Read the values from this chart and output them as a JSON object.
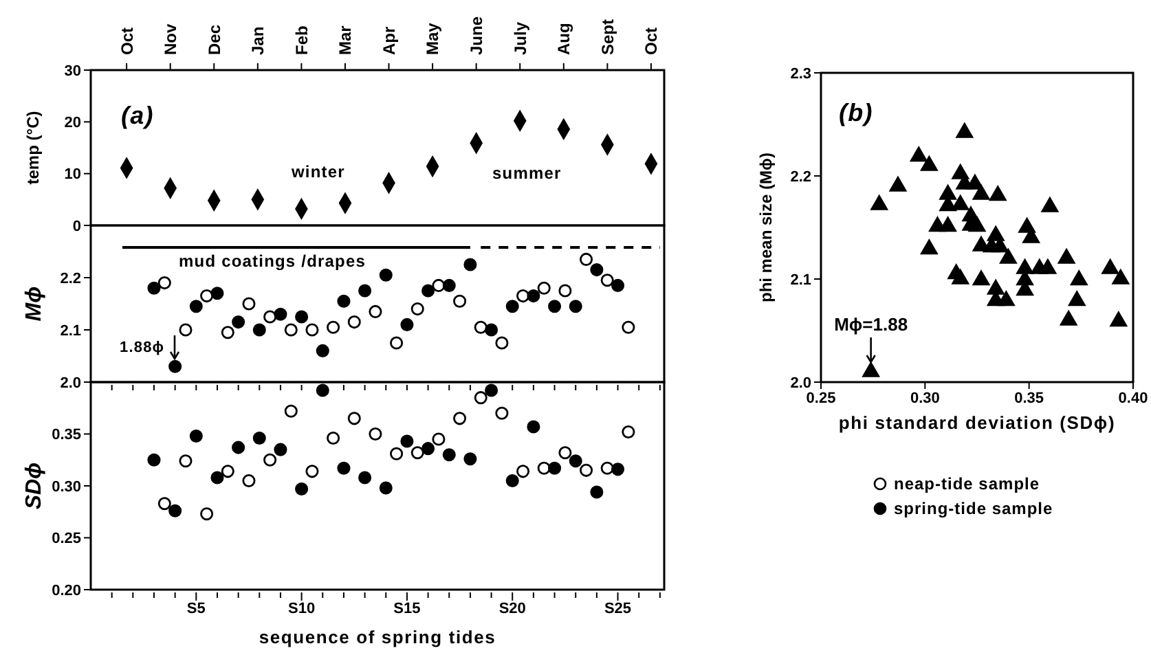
{
  "chart_data": [
    {
      "type": "scatter",
      "ylabel": "temp (°C)",
      "marker": "diamond",
      "annotations": [
        "(a)",
        "winter",
        "summer"
      ],
      "categories": [
        "Oct",
        "Nov",
        "Dec",
        "Jan",
        "Feb",
        "Mar",
        "Apr",
        "May",
        "June",
        "July",
        "Aug",
        "Sept",
        "Oct"
      ],
      "ylim": [
        0,
        30
      ],
      "yticks": [
        0,
        10,
        20,
        30
      ],
      "series": [
        {
          "color": "#000000",
          "values": [
            11.1,
            7.2,
            4.8,
            5.0,
            3.2,
            4.3,
            8.2,
            11.4,
            15.9,
            20.2,
            18.6,
            15.6,
            11.9
          ]
        }
      ]
    },
    {
      "type": "scatter",
      "ylabel": "Mϕ",
      "marker": "circle",
      "tick_labels": "y",
      "annotations": [
        "mud coatings /drapes",
        "1.88ϕ"
      ],
      "categories": [
        null,
        null,
        null,
        null,
        null,
        null,
        null,
        null,
        null,
        null,
        null,
        null,
        null,
        null,
        null,
        null,
        null,
        null,
        null,
        null,
        null,
        null,
        null,
        null,
        null,
        null,
        null,
        null,
        null,
        null,
        null,
        null,
        null,
        null,
        null,
        null,
        null,
        null,
        null,
        null,
        null,
        null,
        null,
        null,
        null,
        null,
        null,
        null,
        null,
        null,
        null,
        null,
        null
      ],
      "ylim": [
        2.0,
        2.3
      ],
      "yticks": [
        {
          "value": 2,
          "label": "2.0"
        },
        2.1,
        2.2
      ],
      "series": [
        {
          "color": "#ffffff",
          "values": [
            null,
            null,
            null,
            null,
            null,
            2.19,
            null,
            2.1,
            null,
            2.165,
            null,
            2.095,
            null,
            2.15,
            null,
            2.125,
            null,
            2.1,
            null,
            2.1,
            null,
            2.105,
            null,
            2.115,
            null,
            2.135,
            null,
            2.075,
            null,
            2.14,
            null,
            2.185,
            null,
            2.155,
            null,
            2.105,
            null,
            2.075,
            null,
            2.165,
            null,
            2.18,
            null,
            2.175,
            null,
            2.235,
            null,
            2.195,
            null,
            2.105,
            null,
            null,
            null
          ]
        },
        {
          "color": "#000000",
          "values": [
            null,
            null,
            null,
            null,
            2.18,
            null,
            2.03,
            null,
            2.145,
            null,
            2.17,
            null,
            2.115,
            null,
            2.1,
            null,
            2.13,
            null,
            2.125,
            null,
            2.06,
            null,
            2.155,
            null,
            2.175,
            null,
            2.205,
            null,
            2.11,
            null,
            2.175,
            null,
            2.185,
            null,
            2.225,
            null,
            2.1,
            null,
            2.145,
            null,
            2.165,
            null,
            2.145,
            null,
            2.145,
            null,
            2.215,
            null,
            2.185,
            null,
            null,
            null,
            null
          ]
        },
        {
          "type": "line",
          "color": "#000000",
          "line_style": "solid",
          "marker": "none",
          "values": [
            null,
            2.258,
            2.258,
            2.258,
            2.258,
            2.258,
            2.258,
            2.258,
            2.258,
            2.258,
            2.258,
            2.258,
            2.258,
            2.258,
            2.258,
            2.258,
            2.258,
            2.258,
            2.258,
            2.258,
            2.258,
            2.258,
            2.258,
            2.258,
            2.258,
            2.258,
            2.258,
            2.258,
            2.258,
            2.258,
            2.258,
            2.258,
            2.258,
            2.258,
            2.258,
            null,
            null,
            null,
            null,
            null,
            null,
            null,
            null,
            null,
            null,
            null,
            null,
            null,
            null,
            null,
            null,
            null,
            null
          ]
        },
        {
          "type": "line",
          "color": "#000000",
          "line_style": "dashed",
          "marker": "none",
          "values": [
            null,
            null,
            null,
            null,
            null,
            null,
            null,
            null,
            null,
            null,
            null,
            null,
            null,
            null,
            null,
            null,
            null,
            null,
            null,
            null,
            null,
            null,
            null,
            null,
            null,
            null,
            null,
            null,
            null,
            null,
            null,
            null,
            null,
            null,
            null,
            2.258,
            2.258,
            2.258,
            2.258,
            2.258,
            2.258,
            2.258,
            2.258,
            2.258,
            2.258,
            2.258,
            2.258,
            2.258,
            2.258,
            2.258,
            2.258,
            2.258,
            2.258
          ]
        }
      ]
    },
    {
      "type": "scatter",
      "xlabel": "sequence of spring tides",
      "ylabel": "SDϕ",
      "marker": "circle",
      "legend": "right",
      "categories": [
        null,
        null,
        null,
        null,
        null,
        null,
        null,
        null,
        "S5",
        null,
        null,
        null,
        null,
        null,
        null,
        null,
        null,
        null,
        "S10",
        null,
        null,
        null,
        null,
        null,
        null,
        null,
        null,
        null,
        "S15",
        null,
        null,
        null,
        null,
        null,
        null,
        null,
        null,
        null,
        "S20",
        null,
        null,
        null,
        null,
        null,
        null,
        null,
        null,
        null,
        "S25",
        null,
        null,
        null,
        null
      ],
      "ylim": [
        0.2,
        0.4
      ],
      "yticks": [
        {
          "value": 0.2,
          "label": "0.20"
        },
        0.25,
        {
          "value": 0.3,
          "label": "0.30"
        },
        0.35
      ],
      "series": [
        {
          "name": "neap-tide sample",
          "color": "#ffffff",
          "values": [
            null,
            null,
            null,
            null,
            null,
            0.283,
            null,
            0.324,
            null,
            0.273,
            null,
            0.314,
            null,
            0.305,
            null,
            0.325,
            null,
            0.372,
            null,
            0.314,
            null,
            0.346,
            null,
            0.365,
            null,
            0.35,
            null,
            0.331,
            null,
            0.332,
            null,
            0.345,
            null,
            0.365,
            null,
            0.385,
            null,
            0.37,
            null,
            0.314,
            null,
            0.317,
            null,
            0.332,
            null,
            0.315,
            null,
            0.317,
            null,
            0.352,
            null,
            null,
            null
          ]
        },
        {
          "name": "spring-tide sample",
          "color": "#000000",
          "values": [
            null,
            null,
            null,
            null,
            0.325,
            null,
            0.276,
            null,
            0.348,
            null,
            0.308,
            null,
            0.337,
            null,
            0.346,
            null,
            0.335,
            null,
            0.297,
            null,
            0.392,
            null,
            0.317,
            null,
            0.308,
            null,
            0.298,
            null,
            0.343,
            null,
            0.336,
            null,
            0.33,
            null,
            0.326,
            null,
            0.392,
            null,
            0.305,
            null,
            0.357,
            null,
            0.317,
            null,
            0.324,
            null,
            0.294,
            null,
            0.316,
            null,
            null,
            null,
            null
          ]
        }
      ]
    },
    {
      "type": "scatter",
      "xlabel": "phi standard deviation (SDϕ)",
      "ylabel": "phi mean size (Mϕ)",
      "marker": "triangle",
      "annotations": [
        "(b)",
        {
          "text": "Mϕ=1.88",
          "x": 0.274,
          "y": 2.01
        }
      ],
      "xlim": [
        0.25,
        0.4
      ],
      "xticks": [
        0.25,
        {
          "value": 0.3,
          "label": "0.30"
        },
        0.35,
        {
          "value": 0.4,
          "label": "0.40"
        }
      ],
      "ylim": [
        2.0,
        2.3
      ],
      "yticks": [
        {
          "value": 2,
          "label": "2.0"
        },
        2.1,
        2.2,
        2.3
      ],
      "series": [
        {
          "color": "#000000",
          "x": [
            0.319,
            0.297,
            0.302,
            0.287,
            0.278,
            0.317,
            0.319,
            0.324,
            0.327,
            0.335,
            0.311,
            0.311,
            0.317,
            0.322,
            0.322,
            0.325,
            0.306,
            0.311,
            0.36,
            0.349,
            0.351,
            0.334,
            0.327,
            0.332,
            0.336,
            0.34,
            0.302,
            0.315,
            0.317,
            0.327,
            0.348,
            0.348,
            0.348,
            0.355,
            0.359,
            0.368,
            0.374,
            0.373,
            0.334,
            0.334,
            0.339,
            0.369,
            0.389,
            0.394,
            0.393,
            0.274
          ],
          "values": [
            2.242,
            2.219,
            2.21,
            2.19,
            2.172,
            2.202,
            2.192,
            2.192,
            2.182,
            2.181,
            2.182,
            2.171,
            2.172,
            2.161,
            2.152,
            2.151,
            2.151,
            2.151,
            2.17,
            2.15,
            2.14,
            2.142,
            2.132,
            2.131,
            2.131,
            2.12,
            2.129,
            2.105,
            2.1,
            2.099,
            2.11,
            2.099,
            2.089,
            2.11,
            2.11,
            2.12,
            2.099,
            2.079,
            2.09,
            2.079,
            2.079,
            2.06,
            2.11,
            2.1,
            2.059,
            2.01
          ]
        }
      ]
    }
  ]
}
